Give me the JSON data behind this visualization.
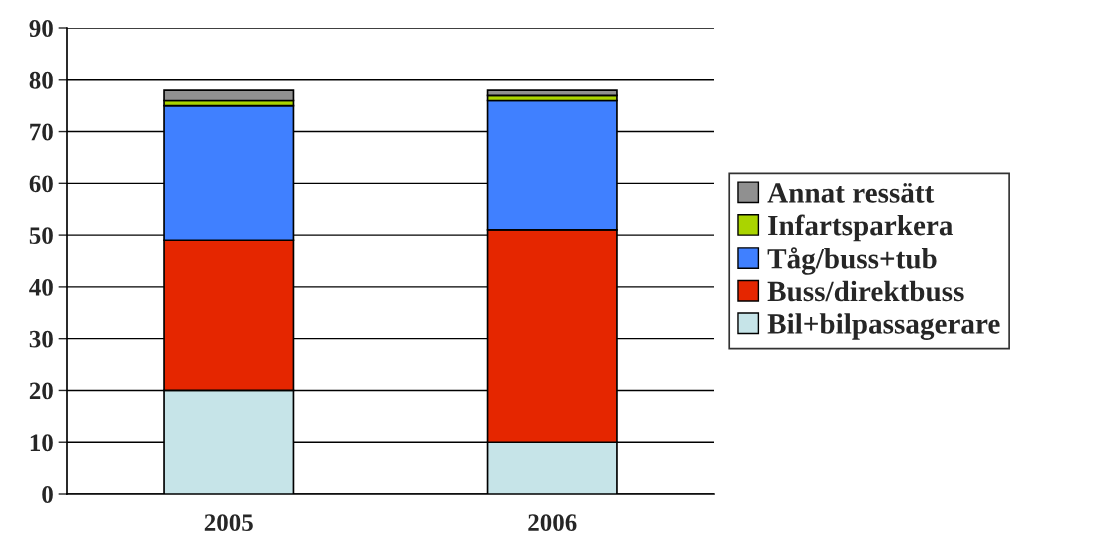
{
  "chart_data": {
    "type": "bar",
    "stacked": true,
    "categories": [
      "2005",
      "2006"
    ],
    "series": [
      {
        "name": "Bil+bilpassagerare",
        "color": "#c6e4e8",
        "values": [
          20,
          10
        ]
      },
      {
        "name": "Buss/direktbuss",
        "color": "#e52600",
        "values": [
          29,
          41
        ]
      },
      {
        "name": "Tåg/buss+tub",
        "color": "#4080ff",
        "values": [
          26,
          25
        ]
      },
      {
        "name": "Infartsparkera",
        "color": "#aad400",
        "values": [
          1,
          1
        ]
      },
      {
        "name": "Annat ressätt",
        "color": "#909090",
        "values": [
          2,
          1
        ]
      }
    ],
    "ylim": [
      0,
      90
    ],
    "yticks": [
      0,
      10,
      20,
      30,
      40,
      50,
      60,
      70,
      80,
      90
    ],
    "grid": "y",
    "legend": "right"
  }
}
